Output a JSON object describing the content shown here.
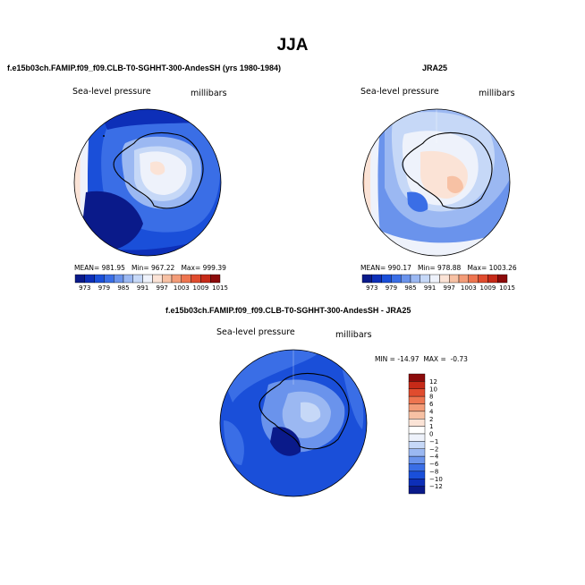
{
  "title": "JJA",
  "chart_data": [
    {
      "type": "heatmap",
      "projection": "south-polar-stereographic",
      "title": "f.e15b03ch.FAMIP.f09_f09.CLB-T0-SGHHT-300-AndesSH (yrs 1980-1984)",
      "variable_label": "Sea-level pressure",
      "units_label": "millibars",
      "stats": {
        "mean_label": "MEAN=",
        "mean": "981.95",
        "min_label": "Min=",
        "min": "967.22",
        "max_label": "Max=",
        "max": "999.39"
      },
      "colorbar": {
        "orientation": "horizontal",
        "ticks": [
          "973",
          "979",
          "985",
          "991",
          "997",
          "1003",
          "1009",
          "1015"
        ],
        "colors": [
          "#0a1a8a",
          "#0d2fb8",
          "#1a4fd9",
          "#3a6ee6",
          "#6a93ec",
          "#9bb8f2",
          "#c6d8f7",
          "#eef2fb",
          "#fbe3d6",
          "#f7c1a4",
          "#f39c78",
          "#ee7550",
          "#e04c2e",
          "#c62a18",
          "#8c0b0b"
        ]
      }
    },
    {
      "type": "heatmap",
      "projection": "south-polar-stereographic",
      "title": "JRA25",
      "variable_label": "Sea-level pressure",
      "units_label": "millibars",
      "stats": {
        "mean_label": "MEAN=",
        "mean": "990.17",
        "min_label": "Min=",
        "min": "978.88",
        "max_label": "Max=",
        "max": "1003.26"
      },
      "colorbar": {
        "orientation": "horizontal",
        "ticks": [
          "973",
          "979",
          "985",
          "991",
          "997",
          "1003",
          "1009",
          "1015"
        ],
        "colors": [
          "#0a1a8a",
          "#0d2fb8",
          "#1a4fd9",
          "#3a6ee6",
          "#6a93ec",
          "#9bb8f2",
          "#c6d8f7",
          "#eef2fb",
          "#fbe3d6",
          "#f7c1a4",
          "#f39c78",
          "#ee7550",
          "#e04c2e",
          "#c62a18",
          "#8c0b0b"
        ]
      }
    },
    {
      "type": "heatmap",
      "projection": "south-polar-stereographic",
      "title": "f.e15b03ch.FAMIP.f09_f09.CLB-T0-SGHHT-300-AndesSH - JRA25",
      "variable_label": "Sea-level pressure",
      "units_label": "millibars",
      "stats": {
        "min_label": "MIN =",
        "min": "-14.97",
        "max_label": "MAX =",
        "max": "-0.73"
      },
      "colorbar": {
        "orientation": "vertical",
        "ticks": [
          "12",
          "10",
          "8",
          "6",
          "4",
          "2",
          "1",
          "0",
          "−1",
          "−2",
          "−4",
          "−6",
          "−8",
          "−10",
          "−12"
        ],
        "colors": [
          "#8c0b0b",
          "#c62a18",
          "#e04c2e",
          "#ee7550",
          "#f39c78",
          "#f7c1a4",
          "#fbe3d6",
          "#ffffff",
          "#eef2fb",
          "#c6d8f7",
          "#9bb8f2",
          "#6a93ec",
          "#3a6ee6",
          "#1a4fd9",
          "#0d2fb8",
          "#0a1a8a"
        ]
      }
    }
  ]
}
